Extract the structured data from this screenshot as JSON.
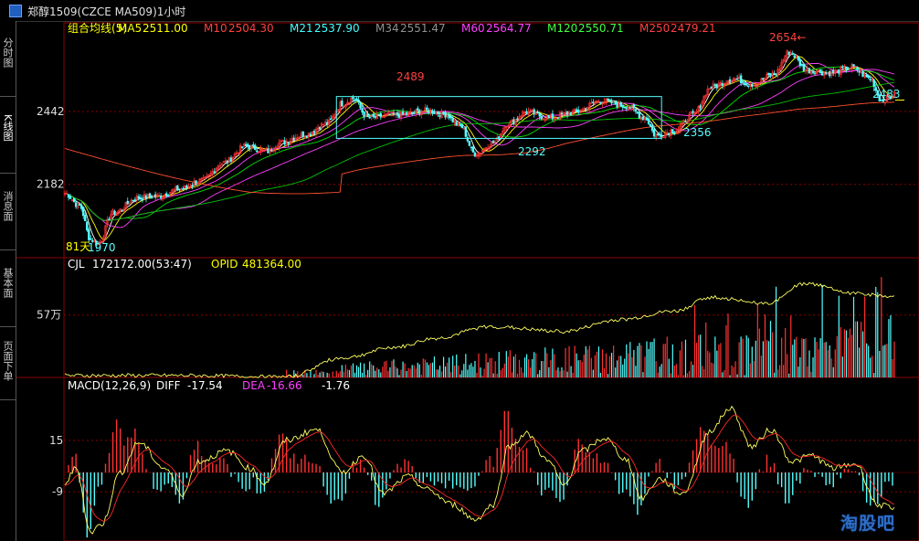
{
  "window": {
    "title": "郑醇1509(CZCE MA509)1小时"
  },
  "sidebar": {
    "tabs": [
      "分时图",
      "K线图",
      "消息面",
      "基本面",
      "页面下单"
    ]
  },
  "colors": {
    "up": "#ff3232",
    "down": "#54ffff",
    "ma5": "#ffffff",
    "ma10": "#ffff00",
    "ma21": "#ff40ff",
    "ma34": "#00e000",
    "ma60": "#ff5030",
    "ma120": "#00c800",
    "ma250": "#ff5030",
    "grid": "#8b0000",
    "axis_label": "#dddddd"
  },
  "price_panel": {
    "legend": [
      {
        "label": "组合均线(5)",
        "color": "#ffff00"
      },
      {
        "label": "MA5",
        "value": "2511.00",
        "color": "#ffff00"
      },
      {
        "label": "M10",
        "value": "2504.30",
        "color": "#ff4040"
      },
      {
        "label": "M21",
        "value": "2537.90",
        "color": "#40ffff"
      },
      {
        "label": "M34",
        "value": "2551.47",
        "color": "#909090"
      },
      {
        "label": "M60",
        "value": "2564.77",
        "color": "#ff40ff"
      },
      {
        "label": "M120",
        "value": "2550.71",
        "color": "#40ff40"
      },
      {
        "label": "M250",
        "value": "2479.21",
        "color": "#ff4040"
      }
    ],
    "y_ticks": [
      "2442",
      "2182"
    ],
    "annotations": [
      "2654←",
      "2489",
      "2292",
      "2356",
      "2483",
      "1970"
    ],
    "period_label": "81天"
  },
  "volume_panel": {
    "legend": [
      {
        "label": "CJL",
        "value": "172172.00(53:47)",
        "color": "#ffffff"
      },
      {
        "label": "OPID",
        "value": "481364.00",
        "color": "#ffff00"
      }
    ],
    "y_ticks": [
      "57万"
    ]
  },
  "macd_panel": {
    "legend": [
      {
        "label": "MACD(12,26,9)",
        "color": "#ffffff"
      },
      {
        "label": "DIFF",
        "value": "-17.54",
        "color": "#ffffff"
      },
      {
        "label": "DEA",
        "value": "-16.66",
        "color": "#ff40ff"
      },
      {
        "label": "",
        "value": "-1.76",
        "color": "#ffffff"
      }
    ],
    "y_ticks": [
      "15",
      "-9"
    ]
  },
  "watermark": "淘股吧",
  "chart_data": {
    "type": "candlestick",
    "symbol": "MA509",
    "interval": "1h",
    "price_anchors": [
      [
        0,
        2150
      ],
      [
        8,
        2105
      ],
      [
        14,
        1985
      ],
      [
        18,
        1970
      ],
      [
        26,
        2080
      ],
      [
        40,
        2135
      ],
      [
        50,
        2140
      ],
      [
        62,
        2165
      ],
      [
        74,
        2195
      ],
      [
        86,
        2260
      ],
      [
        98,
        2318
      ],
      [
        110,
        2300
      ],
      [
        116,
        2330
      ],
      [
        130,
        2360
      ],
      [
        142,
        2400
      ],
      [
        150,
        2470
      ],
      [
        156,
        2489
      ],
      [
        164,
        2420
      ],
      [
        180,
        2430
      ],
      [
        196,
        2445
      ],
      [
        206,
        2432
      ],
      [
        214,
        2390
      ],
      [
        222,
        2292
      ],
      [
        232,
        2330
      ],
      [
        240,
        2400
      ],
      [
        250,
        2440
      ],
      [
        262,
        2420
      ],
      [
        276,
        2440
      ],
      [
        290,
        2480
      ],
      [
        304,
        2462
      ],
      [
        314,
        2420
      ],
      [
        320,
        2356
      ],
      [
        330,
        2375
      ],
      [
        340,
        2430
      ],
      [
        350,
        2530
      ],
      [
        362,
        2560
      ],
      [
        372,
        2540
      ],
      [
        384,
        2575
      ],
      [
        392,
        2654
      ],
      [
        402,
        2590
      ],
      [
        414,
        2580
      ],
      [
        426,
        2600
      ],
      [
        436,
        2560
      ],
      [
        442,
        2483
      ],
      [
        450,
        2505
      ]
    ],
    "volume_anchors": [
      [
        0,
        5
      ],
      [
        60,
        5
      ],
      [
        120,
        1
      ],
      [
        150,
        50
      ],
      [
        180,
        78
      ],
      [
        200,
        100
      ],
      [
        230,
        130
      ],
      [
        270,
        118
      ],
      [
        300,
        148
      ],
      [
        330,
        170
      ],
      [
        350,
        205
      ],
      [
        380,
        190
      ],
      [
        400,
        240
      ],
      [
        430,
        215
      ],
      [
        450,
        205
      ]
    ],
    "macd_anchors": [
      [
        0,
        -5
      ],
      [
        6,
        2
      ],
      [
        14,
        -28
      ],
      [
        20,
        -24
      ],
      [
        30,
        0
      ],
      [
        40,
        14
      ],
      [
        54,
        2
      ],
      [
        64,
        -10
      ],
      [
        72,
        5
      ],
      [
        88,
        10
      ],
      [
        100,
        2
      ],
      [
        108,
        -5
      ],
      [
        120,
        15
      ],
      [
        136,
        20
      ],
      [
        150,
        0
      ],
      [
        162,
        8
      ],
      [
        172,
        -10
      ],
      [
        186,
        -2
      ],
      [
        196,
        -8
      ],
      [
        210,
        -15
      ],
      [
        222,
        -22
      ],
      [
        232,
        -15
      ],
      [
        240,
        12
      ],
      [
        250,
        18
      ],
      [
        262,
        5
      ],
      [
        270,
        -6
      ],
      [
        280,
        10
      ],
      [
        292,
        16
      ],
      [
        304,
        6
      ],
      [
        312,
        -12
      ],
      [
        322,
        -3
      ],
      [
        334,
        -10
      ],
      [
        350,
        20
      ],
      [
        360,
        30
      ],
      [
        372,
        12
      ],
      [
        382,
        20
      ],
      [
        394,
        5
      ],
      [
        404,
        8
      ],
      [
        416,
        2
      ],
      [
        428,
        4
      ],
      [
        440,
        -15
      ],
      [
        450,
        -17.5
      ]
    ],
    "price_range": [
      1920,
      2700
    ],
    "volume_range": [
      0,
      260
    ],
    "macd_range": [
      -33,
      34
    ]
  }
}
